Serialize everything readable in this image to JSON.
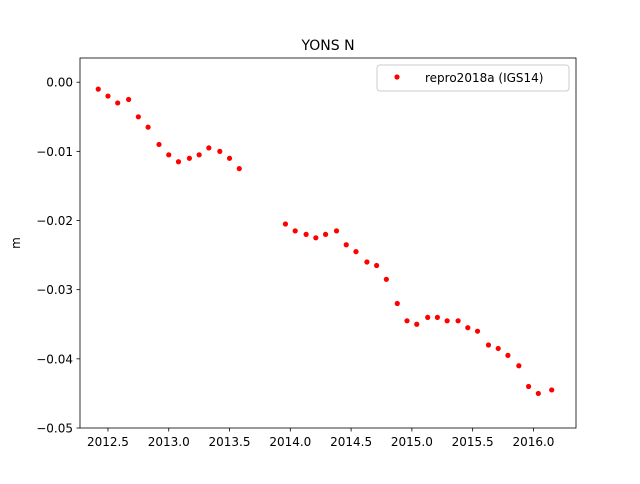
{
  "chart_data": {
    "type": "scatter",
    "title": "YONS N",
    "xlabel": "",
    "ylabel": "m",
    "xlim": [
      2012.27,
      2016.35
    ],
    "ylim": [
      -0.05,
      0.0035
    ],
    "xticks": [
      2012.5,
      2013.0,
      2013.5,
      2014.0,
      2014.5,
      2015.0,
      2015.5,
      2016.0
    ],
    "xtick_labels": [
      "2012.5",
      "2013.0",
      "2013.5",
      "2014.0",
      "2014.5",
      "2015.0",
      "2015.5",
      "2016.0"
    ],
    "yticks": [
      0.0,
      -0.01,
      -0.02,
      -0.03,
      -0.04,
      -0.05
    ],
    "ytick_labels": [
      "0.00",
      "−0.01",
      "−0.02",
      "−0.03",
      "−0.04",
      "−0.05"
    ],
    "grid": false,
    "legend_position": "top-right",
    "series": [
      {
        "name": "repro2018a (IGS14)",
        "color": "#ff0000",
        "marker": "circle",
        "x": [
          2012.42,
          2012.5,
          2012.58,
          2012.67,
          2012.75,
          2012.83,
          2012.92,
          2013.0,
          2013.08,
          2013.17,
          2013.25,
          2013.33,
          2013.42,
          2013.5,
          2013.58,
          2013.96,
          2014.04,
          2014.13,
          2014.21,
          2014.29,
          2014.38,
          2014.46,
          2014.54,
          2014.63,
          2014.71,
          2014.79,
          2014.88,
          2014.96,
          2015.04,
          2015.13,
          2015.21,
          2015.29,
          2015.38,
          2015.46,
          2015.54,
          2015.63,
          2015.71,
          2015.79,
          2015.88,
          2015.96,
          2016.04,
          2016.15
        ],
        "y": [
          -0.001,
          -0.002,
          -0.003,
          -0.0025,
          -0.005,
          -0.0065,
          -0.009,
          -0.0105,
          -0.0115,
          -0.011,
          -0.0105,
          -0.0095,
          -0.01,
          -0.011,
          -0.0125,
          -0.0205,
          -0.0215,
          -0.022,
          -0.0225,
          -0.022,
          -0.0215,
          -0.0235,
          -0.0245,
          -0.026,
          -0.0265,
          -0.0285,
          -0.032,
          -0.0345,
          -0.035,
          -0.034,
          -0.034,
          -0.0345,
          -0.0345,
          -0.0355,
          -0.036,
          -0.038,
          -0.0385,
          -0.0395,
          -0.041,
          -0.044,
          -0.045,
          -0.0445
        ]
      }
    ]
  }
}
